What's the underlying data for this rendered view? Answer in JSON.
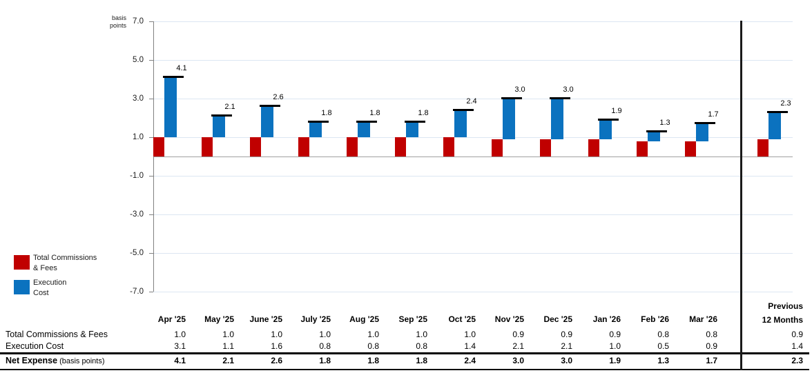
{
  "y_axis_unit": {
    "line1": "basis",
    "line2": "points"
  },
  "chart_data": {
    "type": "bar",
    "stacked": true,
    "title": "",
    "xlabel": "",
    "ylabel": "basis points",
    "ylim": [
      -7.0,
      7.0
    ],
    "y_ticks": [
      "7.0",
      "5.0",
      "3.0",
      "1.0",
      "-1.0",
      "-3.0",
      "-5.0",
      "-7.0"
    ],
    "grid": true,
    "legend_position": "bottom-left",
    "categories": [
      "Apr '25",
      "May '25",
      "June '25",
      "July '25",
      "Aug '25",
      "Sep '25",
      "Oct '25",
      "Nov '25",
      "Dec '25",
      "Jan '26",
      "Feb '26",
      "Mar '26",
      "Previous 12 Months"
    ],
    "series": [
      {
        "name": "Total Commissions & Fees",
        "color": "#c00000",
        "values": [
          1.0,
          1.0,
          1.0,
          1.0,
          1.0,
          1.0,
          1.0,
          0.9,
          0.9,
          0.9,
          0.8,
          0.8,
          0.9
        ]
      },
      {
        "name": "Execution Cost",
        "color": "#0b72bf",
        "values": [
          3.1,
          1.1,
          1.6,
          0.8,
          0.8,
          0.8,
          1.4,
          2.1,
          2.1,
          1.0,
          0.5,
          0.9,
          1.4
        ]
      },
      {
        "name": "Net Expense",
        "role": "total_marker",
        "color": "#000000",
        "values": [
          4.1,
          2.1,
          2.6,
          1.8,
          1.8,
          1.8,
          2.4,
          3.0,
          3.0,
          1.9,
          1.3,
          1.7,
          2.3
        ]
      }
    ],
    "bar_labels": [
      "4.1",
      "2.1",
      "2.6",
      "1.8",
      "1.8",
      "1.8",
      "2.4",
      "3.0",
      "3.0",
      "1.9",
      "1.3",
      "1.7",
      "2.3"
    ]
  },
  "legend": {
    "items": [
      {
        "color": "#c00000",
        "line1": "Total Commissions",
        "line2": "& Fees"
      },
      {
        "color": "#0b72bf",
        "line1": "Execution",
        "line2": "Cost"
      }
    ]
  },
  "table": {
    "column_headers": [
      "Apr '25",
      "May '25",
      "June '25",
      "July '25",
      "Aug '25",
      "Sep '25",
      "Oct '25",
      "Nov '25",
      "Dec '25",
      "Jan '26",
      "Feb '26",
      "Mar '26"
    ],
    "last_column_header": {
      "line1": "Previous",
      "line2": "12 Months"
    },
    "rows": [
      {
        "label": "Total Commissions & Fees",
        "bold": false,
        "values": [
          "1.0",
          "1.0",
          "1.0",
          "1.0",
          "1.0",
          "1.0",
          "1.0",
          "0.9",
          "0.9",
          "0.9",
          "0.8",
          "0.8",
          "0.9"
        ]
      },
      {
        "label": "Execution Cost",
        "bold": false,
        "values": [
          "3.1",
          "1.1",
          "1.6",
          "0.8",
          "0.8",
          "0.8",
          "1.4",
          "2.1",
          "2.1",
          "1.0",
          "0.5",
          "0.9",
          "1.4"
        ]
      },
      {
        "label": "Net Expense",
        "label_suffix": " (basis points)",
        "bold": true,
        "values": [
          "4.1",
          "2.1",
          "2.6",
          "1.8",
          "1.8",
          "1.8",
          "2.4",
          "3.0",
          "3.0",
          "1.9",
          "1.3",
          "1.7",
          "2.3"
        ]
      }
    ]
  },
  "colors": {
    "bar_red": "#c00000",
    "bar_blue": "#0b72bf",
    "gridline": "#dce6f2",
    "axis": "#808080",
    "zero_line": "#a0a0a0",
    "divider": "#1a1a1a"
  }
}
